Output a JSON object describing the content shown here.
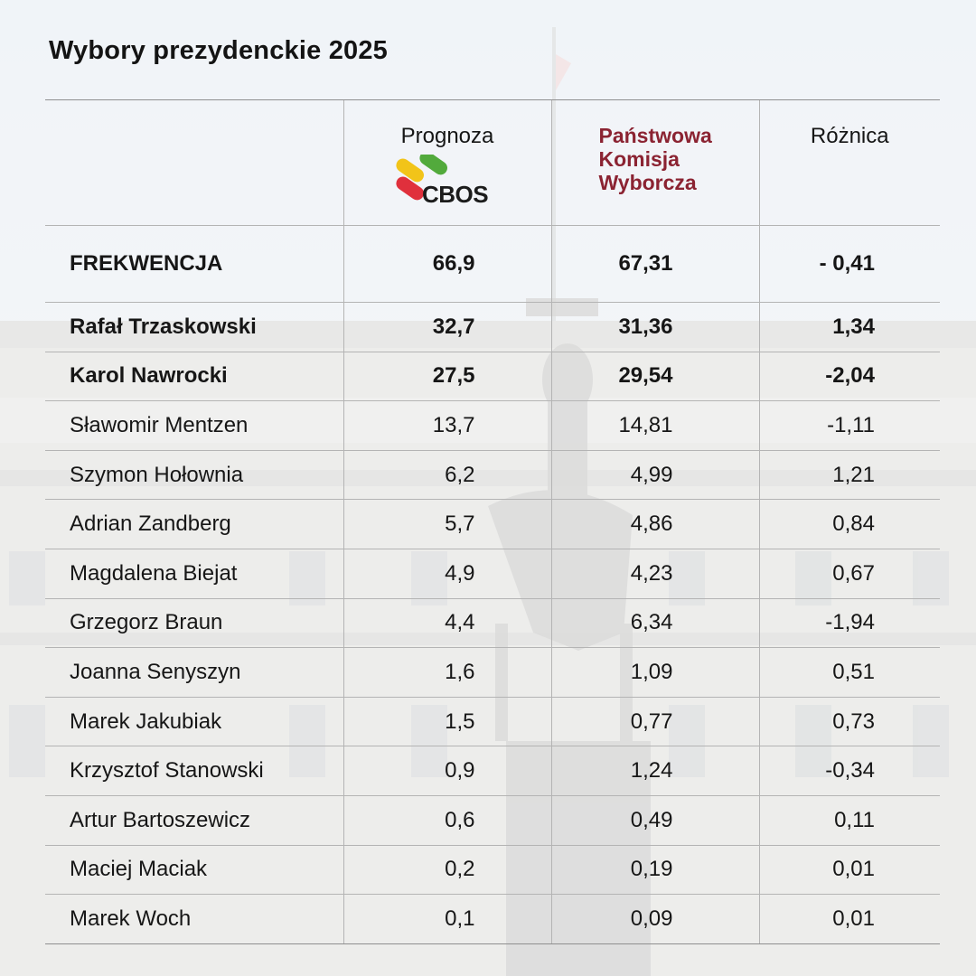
{
  "title": "Wybory prezydenckie 2025",
  "colors": {
    "pkw_header": "#8b2332",
    "text": "#161616",
    "grid": "#b4b4b4"
  },
  "header": {
    "forecast_label": "Prognoza",
    "logo_text": "CBOS",
    "pkw_lines": [
      "Państwowa",
      "Komisja",
      "Wyborcza"
    ],
    "diff_label": "Różnica"
  },
  "chart_data": {
    "type": "table",
    "title": "Wybory prezydenckie 2025",
    "columns": [
      "",
      "Prognoza CBOS",
      "Państwowa Komisja Wyborcza",
      "Różnica"
    ],
    "rows": [
      {
        "name": "FREKWENCJA",
        "forecast": "66,9",
        "pkw": "67,31",
        "diff": "- 0,41",
        "bold": true
      },
      {
        "name": "Rafał Trzaskowski",
        "forecast": "32,7",
        "pkw": "31,36",
        "diff": "1,34",
        "bold": true
      },
      {
        "name": "Karol Nawrocki",
        "forecast": "27,5",
        "pkw": "29,54",
        "diff": "-2,04",
        "bold": true
      },
      {
        "name": "Sławomir Mentzen",
        "forecast": "13,7",
        "pkw": "14,81",
        "diff": "-1,11",
        "bold": false
      },
      {
        "name": "Szymon Hołownia",
        "forecast": "6,2",
        "pkw": "4,99",
        "diff": "1,21",
        "bold": false
      },
      {
        "name": "Adrian Zandberg",
        "forecast": "5,7",
        "pkw": "4,86",
        "diff": "0,84",
        "bold": false
      },
      {
        "name": "Magdalena Biejat",
        "forecast": "4,9",
        "pkw": "4,23",
        "diff": "0,67",
        "bold": false
      },
      {
        "name": "Grzegorz Braun",
        "forecast": "4,4",
        "pkw": "6,34",
        "diff": "-1,94",
        "bold": false
      },
      {
        "name": "Joanna Senyszyn",
        "forecast": "1,6",
        "pkw": "1,09",
        "diff": "0,51",
        "bold": false
      },
      {
        "name": "Marek Jakubiak",
        "forecast": "1,5",
        "pkw": "0,77",
        "diff": "0,73",
        "bold": false
      },
      {
        "name": "Krzysztof Stanowski",
        "forecast": "0,9",
        "pkw": "1,24",
        "diff": "-0,34",
        "bold": false
      },
      {
        "name": "Artur Bartoszewicz",
        "forecast": "0,6",
        "pkw": "0,49",
        "diff": "0,11",
        "bold": false
      },
      {
        "name": "Maciej Maciak",
        "forecast": "0,2",
        "pkw": "0,19",
        "diff": "0,01",
        "bold": false
      },
      {
        "name": "Marek Woch",
        "forecast": "0,1",
        "pkw": "0,09",
        "diff": "0,01",
        "bold": false
      }
    ]
  }
}
